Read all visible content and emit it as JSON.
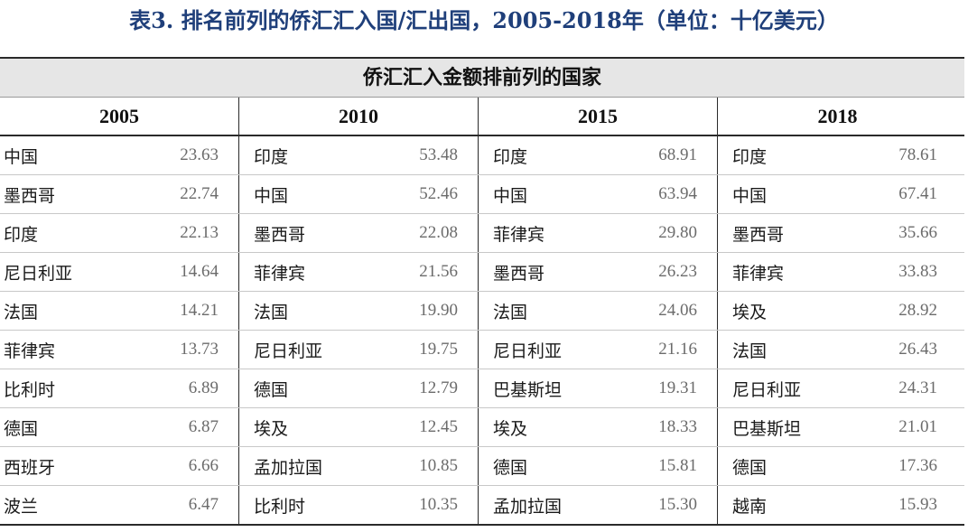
{
  "title": "表3. 排名前列的侨汇汇入国/汇出国，2005-2018年（单位：十亿美元）",
  "banner": "侨汇汇入金额排前列的国家",
  "years": [
    "2005",
    "2010",
    "2015",
    "2018"
  ],
  "columns": [
    [
      {
        "country": "中国",
        "value": "23.63"
      },
      {
        "country": "墨西哥",
        "value": "22.74"
      },
      {
        "country": "印度",
        "value": "22.13"
      },
      {
        "country": "尼日利亚",
        "value": "14.64"
      },
      {
        "country": "法国",
        "value": "14.21"
      },
      {
        "country": "菲律宾",
        "value": "13.73"
      },
      {
        "country": "比利时",
        "value": "6.89"
      },
      {
        "country": "德国",
        "value": "6.87"
      },
      {
        "country": "西班牙",
        "value": "6.66"
      },
      {
        "country": "波兰",
        "value": "6.47"
      }
    ],
    [
      {
        "country": "印度",
        "value": "53.48"
      },
      {
        "country": "中国",
        "value": "52.46"
      },
      {
        "country": "墨西哥",
        "value": "22.08"
      },
      {
        "country": "菲律宾",
        "value": "21.56"
      },
      {
        "country": "法国",
        "value": "19.90"
      },
      {
        "country": "尼日利亚",
        "value": "19.75"
      },
      {
        "country": "德国",
        "value": "12.79"
      },
      {
        "country": "埃及",
        "value": "12.45"
      },
      {
        "country": "孟加拉国",
        "value": "10.85"
      },
      {
        "country": "比利时",
        "value": "10.35"
      }
    ],
    [
      {
        "country": "印度",
        "value": "68.91"
      },
      {
        "country": "中国",
        "value": "63.94"
      },
      {
        "country": "菲律宾",
        "value": "29.80"
      },
      {
        "country": "墨西哥",
        "value": "26.23"
      },
      {
        "country": "法国",
        "value": "24.06"
      },
      {
        "country": "尼日利亚",
        "value": "21.16"
      },
      {
        "country": "巴基斯坦",
        "value": "19.31"
      },
      {
        "country": "埃及",
        "value": "18.33"
      },
      {
        "country": "德国",
        "value": "15.81"
      },
      {
        "country": "孟加拉国",
        "value": "15.30"
      }
    ],
    [
      {
        "country": "印度",
        "value": "78.61"
      },
      {
        "country": "中国",
        "value": "67.41"
      },
      {
        "country": "墨西哥",
        "value": "35.66"
      },
      {
        "country": "菲律宾",
        "value": "33.83"
      },
      {
        "country": "埃及",
        "value": "28.92"
      },
      {
        "country": "法国",
        "value": "26.43"
      },
      {
        "country": "尼日利亚",
        "value": "24.31"
      },
      {
        "country": "巴基斯坦",
        "value": "21.01"
      },
      {
        "country": "德国",
        "value": "17.36"
      },
      {
        "country": "越南",
        "value": "15.93"
      }
    ]
  ]
}
